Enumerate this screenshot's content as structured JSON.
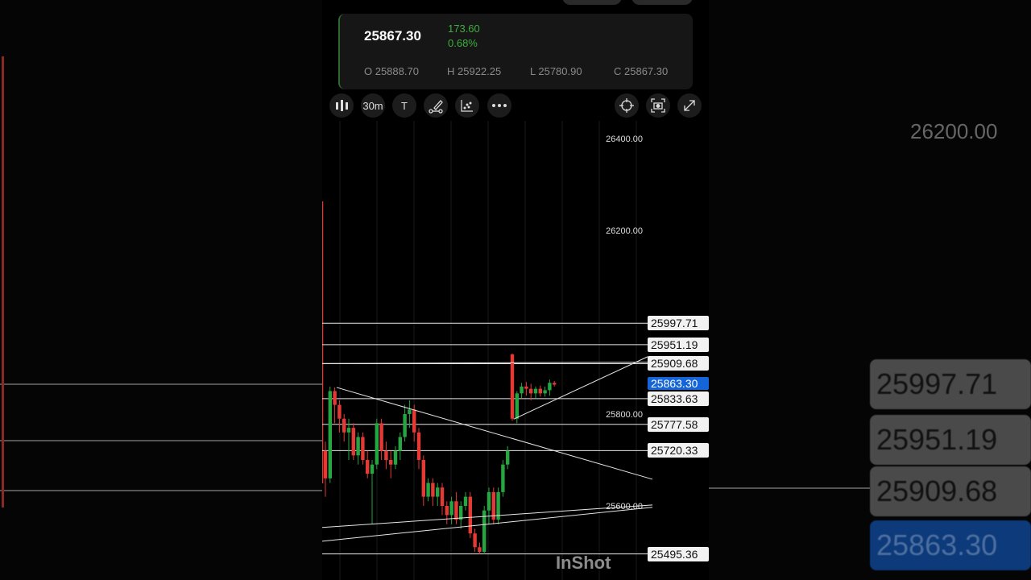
{
  "quote": {
    "ltp": "25867.30",
    "change": "173.60",
    "change_pct": "0.68%",
    "open": "O 25888.70",
    "high": "H 25922.25",
    "low": "L 25780.90",
    "close": "C 25867.30"
  },
  "toolbar": {
    "chart_type_icon": "candlestick-icon",
    "interval": "30m",
    "text_tool": "T",
    "icons": [
      "pencil-draw-icon",
      "indicators-icon",
      "more-icon",
      "crosshair-icon",
      "screenshot-icon",
      "expand-icon"
    ]
  },
  "colors": {
    "up": "#26a641",
    "down": "#e53935",
    "accent": "#1565d8",
    "change": "#3dae3d"
  },
  "watermark": "InShot",
  "chart_data": {
    "type": "candlestick",
    "ylim": [
      25460,
      26480
    ],
    "y_ticks": [
      "26400.00",
      "26200.00",
      "25800.00",
      "25600.00"
    ],
    "y_tick_values": [
      26400,
      26200,
      25800,
      25600
    ],
    "grid": true,
    "current_price": {
      "label": "25863.30",
      "value": 25863.3
    },
    "levels": [
      {
        "label": "25997.71",
        "value": 25997.71
      },
      {
        "label": "25951.19",
        "value": 25951.19
      },
      {
        "label": "25909.68",
        "value": 25909.68
      },
      {
        "label": "25833.63",
        "value": 25833.63
      },
      {
        "label": "25777.58",
        "value": 25777.58
      },
      {
        "label": "25720.33",
        "value": 25720.33
      },
      {
        "label": "25495.36",
        "value": 25495.36
      }
    ],
    "trendlines": [
      {
        "from": [
          2.4,
          25858
        ],
        "to": [
          70,
          25658
        ]
      },
      {
        "from": [
          40.3,
          25789
        ],
        "to": [
          69,
          25925
        ]
      },
      {
        "from": [
          -0.7,
          25553
        ],
        "to": [
          70,
          25602
        ]
      },
      {
        "from": [
          -0.7,
          25523
        ],
        "to": [
          70,
          25597
        ]
      },
      {
        "from": [
          -0.7,
          25910
        ],
        "to": [
          69,
          25913
        ]
      }
    ],
    "candles": [
      [
        25720,
        25740,
        25620,
        25660
      ],
      [
        25660,
        25860,
        25650,
        25850
      ],
      [
        25850,
        25858,
        25780,
        25820
      ],
      [
        25820,
        25830,
        25760,
        25790
      ],
      [
        25790,
        25800,
        25740,
        25760
      ],
      [
        25760,
        25790,
        25700,
        25770
      ],
      [
        25770,
        25780,
        25700,
        25710
      ],
      [
        25710,
        25760,
        25690,
        25750
      ],
      [
        25750,
        25760,
        25690,
        25700
      ],
      [
        25700,
        25720,
        25660,
        25670
      ],
      [
        25670,
        25700,
        25560,
        25690
      ],
      [
        25690,
        25790,
        25680,
        25780
      ],
      [
        25780,
        25790,
        25700,
        25720
      ],
      [
        25720,
        25740,
        25680,
        25700
      ],
      [
        25700,
        25720,
        25660,
        25690
      ],
      [
        25690,
        25730,
        25680,
        25720
      ],
      [
        25720,
        25760,
        25700,
        25750
      ],
      [
        25750,
        25820,
        25740,
        25800
      ],
      [
        25800,
        25830,
        25770,
        25810
      ],
      [
        25810,
        25820,
        25740,
        25760
      ],
      [
        25760,
        25770,
        25680,
        25700
      ],
      [
        25700,
        25710,
        25600,
        25620
      ],
      [
        25620,
        25660,
        25610,
        25650
      ],
      [
        25650,
        25660,
        25600,
        25620
      ],
      [
        25620,
        25650,
        25600,
        25640
      ],
      [
        25640,
        25650,
        25580,
        25600
      ],
      [
        25600,
        25610,
        25560,
        25580
      ],
      [
        25580,
        25620,
        25560,
        25610
      ],
      [
        25610,
        25630,
        25560,
        25570
      ],
      [
        25570,
        25610,
        25550,
        25600
      ],
      [
        25600,
        25630,
        25590,
        25620
      ],
      [
        25620,
        25630,
        25530,
        25540
      ],
      [
        25540,
        25550,
        25500,
        25510
      ],
      [
        25510,
        25520,
        25495,
        25500
      ],
      [
        25500,
        25600,
        25495,
        25590
      ],
      [
        25590,
        25640,
        25560,
        25630
      ],
      [
        25630,
        25640,
        25560,
        25570
      ],
      [
        25570,
        25640,
        25560,
        25630
      ],
      [
        25630,
        25700,
        25620,
        25690
      ],
      [
        25690,
        25730,
        25680,
        25720
      ],
      [
        25930,
        25932,
        25785,
        25790
      ],
      [
        25790,
        25850,
        25780,
        25845
      ],
      [
        25845,
        25868,
        25835,
        25860
      ],
      [
        25860,
        25870,
        25840,
        25855
      ],
      [
        25855,
        25866,
        25830,
        25845
      ],
      [
        25845,
        25860,
        25835,
        25855
      ],
      [
        25855,
        25862,
        25838,
        25845
      ],
      [
        25845,
        25860,
        25838,
        25852
      ],
      [
        25852,
        25875,
        25840,
        25868
      ],
      [
        25868,
        25872,
        25860,
        25864
      ]
    ]
  }
}
